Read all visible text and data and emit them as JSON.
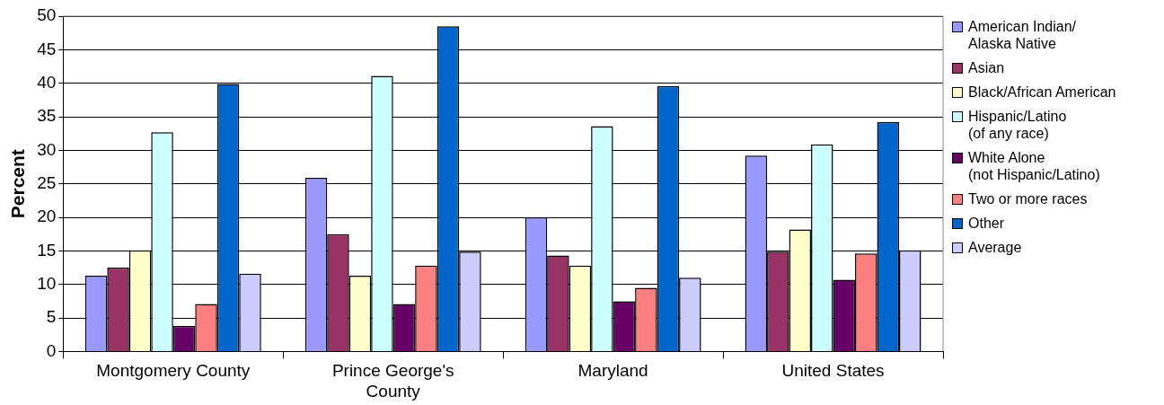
{
  "chart_data": {
    "type": "bar",
    "ylabel": "Percent",
    "categories": [
      "Montgomery County",
      "Prince George's\nCounty",
      "Maryland",
      "United States"
    ],
    "series": [
      {
        "name": "American Indian/\nAlaska Native",
        "color": "#9999ff",
        "values": [
          11.3,
          25.9,
          20.0,
          29.2
        ]
      },
      {
        "name": "Asian",
        "color": "#993366",
        "values": [
          12.5,
          17.5,
          14.3,
          14.9
        ]
      },
      {
        "name": "Black/African American",
        "color": "#ffffcc",
        "values": [
          15.1,
          11.3,
          12.8,
          18.2
        ]
      },
      {
        "name": "Hispanic/Latino\n(of any race)",
        "color": "#ccffff",
        "values": [
          32.7,
          41.1,
          33.6,
          30.9
        ]
      },
      {
        "name": "White Alone\n(not Hispanic/Latino)",
        "color": "#660066",
        "values": [
          3.8,
          7.1,
          7.5,
          10.7
        ]
      },
      {
        "name": "Two or more races",
        "color": "#ff8080",
        "values": [
          7.1,
          12.8,
          9.5,
          14.6
        ]
      },
      {
        "name": "Other",
        "color": "#0066cc",
        "values": [
          39.9,
          48.5,
          39.6,
          34.2
        ]
      },
      {
        "name": "Average",
        "color": "#ccccff",
        "values": [
          11.6,
          14.9,
          11.0,
          15.1
        ]
      }
    ],
    "ylim": [
      0,
      50
    ],
    "yticks": [
      0,
      5,
      10,
      15,
      20,
      25,
      30,
      35,
      40,
      45,
      50
    ],
    "grid": "y",
    "legend": "right"
  }
}
